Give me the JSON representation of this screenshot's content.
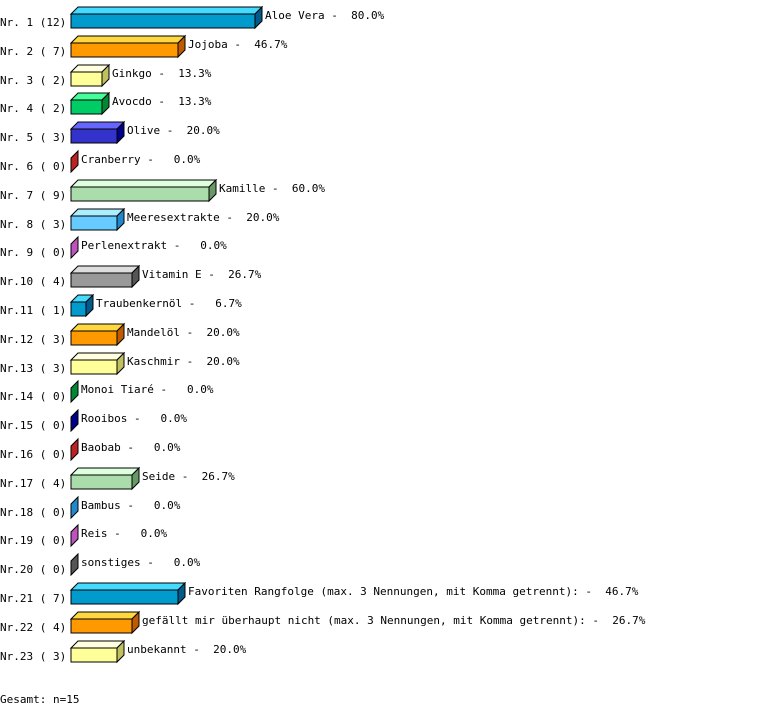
{
  "chart_data": {
    "type": "bar",
    "orientation": "horizontal",
    "style": "3d",
    "xlim": [
      0,
      100
    ],
    "grid": false,
    "categories": [
      "Nr. 1",
      "Nr. 2",
      "Nr. 3",
      "Nr. 4",
      "Nr. 5",
      "Nr. 6",
      "Nr. 7",
      "Nr. 8",
      "Nr. 9",
      "Nr.10",
      "Nr.11",
      "Nr.12",
      "Nr.13",
      "Nr.14",
      "Nr.15",
      "Nr.16",
      "Nr.17",
      "Nr.18",
      "Nr.19",
      "Nr.20",
      "Nr.21",
      "Nr.22",
      "Nr.23"
    ],
    "row_labels": [
      "Nr. 1 (12)",
      "Nr. 2 ( 7)",
      "Nr. 3 ( 2)",
      "Nr. 4 ( 2)",
      "Nr. 5 ( 3)",
      "Nr. 6 ( 0)",
      "Nr. 7 ( 9)",
      "Nr. 8 ( 3)",
      "Nr. 9 ( 0)",
      "Nr.10 ( 4)",
      "Nr.11 ( 1)",
      "Nr.12 ( 3)",
      "Nr.13 ( 3)",
      "Nr.14 ( 0)",
      "Nr.15 ( 0)",
      "Nr.16 ( 0)",
      "Nr.17 ( 4)",
      "Nr.18 ( 0)",
      "Nr.19 ( 0)",
      "Nr.20 ( 0)",
      "Nr.21 ( 7)",
      "Nr.22 ( 4)",
      "Nr.23 ( 3)"
    ],
    "counts": [
      12,
      7,
      2,
      2,
      3,
      0,
      9,
      3,
      0,
      4,
      1,
      3,
      3,
      0,
      0,
      0,
      4,
      0,
      0,
      0,
      7,
      4,
      3
    ],
    "names": [
      "Aloe Vera",
      "Jojoba",
      "Ginkgo",
      "Avocdo",
      "Olive",
      "Cranberry",
      "Kamille",
      "Meeresextrakte",
      "Perlenextrakt",
      "Vitamin E",
      "Traubenkernöl",
      "Mandelöl",
      "Kaschmir",
      "Monoi Tiaré",
      "Rooibos",
      "Baobab",
      "Seide",
      "Bambus",
      "Reis",
      "sonstiges",
      "Favoriten Rangfolge (max. 3 Nennungen, mit Komma getrennt):",
      "gefällt mir überhaupt nicht (max. 3 Nennungen, mit Komma getrennt):",
      "unbekannt"
    ],
    "values": [
      80.0,
      46.7,
      13.3,
      13.3,
      20.0,
      0.0,
      60.0,
      20.0,
      0.0,
      26.7,
      6.7,
      20.0,
      20.0,
      0.0,
      0.0,
      0.0,
      26.7,
      0.0,
      0.0,
      0.0,
      46.7,
      26.7,
      20.0
    ],
    "value_labels": [
      "Aloe Vera -  80.0%",
      "Jojoba -  46.7%",
      "Ginkgo -  13.3%",
      "Avocdo -  13.3%",
      "Olive -  20.0%",
      "Cranberry -   0.0%",
      "Kamille -  60.0%",
      "Meeresextrakte -  20.0%",
      "Perlenextrakt -   0.0%",
      "Vitamin E -  26.7%",
      "Traubenkernöl -   6.7%",
      "Mandelöl -  20.0%",
      "Kaschmir -  20.0%",
      "Monoi Tiaré -   0.0%",
      "Rooibos -   0.0%",
      "Baobab -   0.0%",
      "Seide -  26.7%",
      "Bambus -   0.0%",
      "Reis -   0.0%",
      "sonstiges -   0.0%",
      "Favoriten Rangfolge (max. 3 Nennungen, mit Komma getrennt): -  46.7%",
      "gefällt mir überhaupt nicht (max. 3 Nennungen, mit Komma getrennt): -  26.7%",
      "unbekannt -  20.0%"
    ],
    "palette": [
      {
        "front": "#009acd",
        "top": "#44dbff",
        "side": "#005a8a"
      },
      {
        "front": "#ff9900",
        "top": "#ffd740",
        "side": "#c05a00"
      },
      {
        "front": "#ffff99",
        "top": "#ffffdd",
        "side": "#c0c060"
      },
      {
        "front": "#00cc66",
        "top": "#44ff99",
        "side": "#008833"
      },
      {
        "front": "#3333cc",
        "top": "#6666ff",
        "side": "#000088"
      },
      {
        "front": "#cc3333",
        "top": "#ff6666",
        "side": "#bb2222"
      },
      {
        "front": "#aaddaa",
        "top": "#ddffdd",
        "side": "#669966"
      },
      {
        "front": "#66ccff",
        "top": "#aaeeff",
        "side": "#2288cc"
      },
      {
        "front": "#cc66cc",
        "top": "#ffaaff",
        "side": "#bb55bb"
      },
      {
        "front": "#999999",
        "top": "#dddddd",
        "side": "#555555"
      }
    ],
    "footer": "Gesamt: n=15"
  }
}
